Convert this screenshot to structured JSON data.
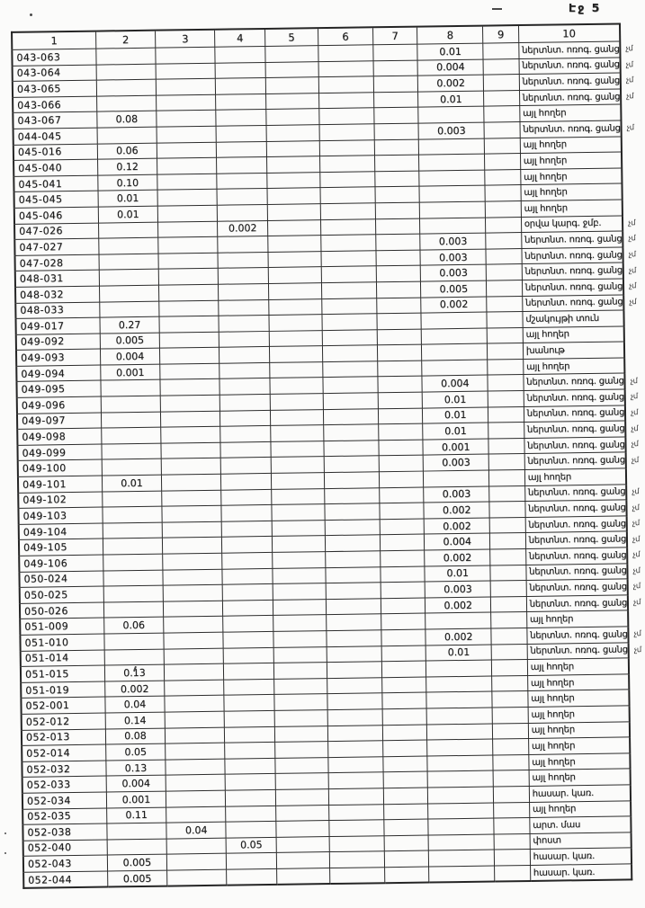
{
  "page": {
    "page_label": "Էջ 5"
  },
  "table": {
    "column_headers": [
      "1",
      "2",
      "3",
      "4",
      "5",
      "6",
      "7",
      "8",
      "9",
      "10"
    ],
    "rows": [
      {
        "code": "043-063",
        "values": {
          "8": "0.01"
        },
        "label": "ներտնտ. ոռոգ. ցանց",
        "margin": "չմ"
      },
      {
        "code": "043-064",
        "values": {
          "8": "0.004"
        },
        "label": "ներտնտ. ոռոգ. ցանց",
        "margin": "չմ"
      },
      {
        "code": "043-065",
        "values": {
          "8": "0.002"
        },
        "label": "ներտնտ. ոռոգ. ցանց",
        "margin": "չմ"
      },
      {
        "code": "043-066",
        "values": {
          "8": "0.01"
        },
        "label": "ներտնտ. ոռոգ. ցանց",
        "margin": "չմ"
      },
      {
        "code": "043-067",
        "values": {
          "2": "0.08"
        },
        "label": "այլ հողեր",
        "margin": ""
      },
      {
        "code": "044-045",
        "values": {
          "8": "0.003"
        },
        "label": "ներտնտ. ոռոգ. ցանց",
        "margin": "չմ"
      },
      {
        "code": "045-016",
        "values": {
          "2": "0.06"
        },
        "label": "այլ հողեր",
        "margin": ""
      },
      {
        "code": "045-040",
        "values": {
          "2": "0.12"
        },
        "label": "այլ հողեր",
        "margin": ""
      },
      {
        "code": "045-041",
        "values": {
          "2": "0.10"
        },
        "label": "այլ հողեր",
        "margin": ""
      },
      {
        "code": "045-045",
        "values": {
          "2": "0.01"
        },
        "label": "այլ հողեր",
        "margin": ""
      },
      {
        "code": "045-046",
        "values": {
          "2": "0.01"
        },
        "label": "այլ հողեր",
        "margin": ""
      },
      {
        "code": "047-026",
        "values": {
          "4": "0.002"
        },
        "label": "օրվա կարգ. ջմբ.",
        "margin": "չմ"
      },
      {
        "code": "047-027",
        "values": {
          "8": "0.003"
        },
        "label": "ներտնտ. ոռոգ. ցանց",
        "margin": "չմ"
      },
      {
        "code": "047-028",
        "values": {
          "8": "0.003"
        },
        "label": "ներտնտ. ոռոգ. ցանց",
        "margin": "չմ"
      },
      {
        "code": "048-031",
        "values": {
          "8": "0.003"
        },
        "label": "ներտնտ. ոռոգ. ցանց",
        "margin": "չմ"
      },
      {
        "code": "048-032",
        "values": {
          "8": "0.005"
        },
        "label": "ներտնտ. ոռոգ. ցանց",
        "margin": "չմ"
      },
      {
        "code": "048-033",
        "values": {
          "8": "0.002"
        },
        "label": "ներտնտ. ոռոգ. ցանց",
        "margin": "չմ"
      },
      {
        "code": "049-017",
        "values": {
          "2": "0.27"
        },
        "label": "մշակույթի տուն",
        "margin": ""
      },
      {
        "code": "049-092",
        "values": {
          "2": "0.005"
        },
        "label": "այլ հողեր",
        "margin": ""
      },
      {
        "code": "049-093",
        "values": {
          "2": "0.004"
        },
        "label": "խանութ",
        "margin": ""
      },
      {
        "code": "049-094",
        "values": {
          "2": "0.001"
        },
        "label": "այլ հողեր",
        "margin": ""
      },
      {
        "code": "049-095",
        "values": {
          "8": "0.004"
        },
        "label": "ներտնտ. ոռոգ. ցանց",
        "margin": "չմ"
      },
      {
        "code": "049-096",
        "values": {
          "8": "0.01"
        },
        "label": "ներտնտ. ոռոգ. ցանց",
        "margin": "չմ"
      },
      {
        "code": "049-097",
        "values": {
          "8": "0.01"
        },
        "label": "ներտնտ. ոռոգ. ցանց",
        "margin": "չմ"
      },
      {
        "code": "049-098",
        "values": {
          "8": "0.01"
        },
        "label": "ներտնտ. ոռոգ. ցանց",
        "margin": "չմ"
      },
      {
        "code": "049-099",
        "values": {
          "8": "0.001"
        },
        "label": "ներտնտ. ոռոգ. ցանց",
        "margin": "չմ"
      },
      {
        "code": "049-100",
        "values": {
          "8": "0.003"
        },
        "label": "ներտնտ. ոռոգ. ցանց",
        "margin": "չմ"
      },
      {
        "code": "049-101",
        "values": {
          "2": "0.01"
        },
        "label": "այլ հողեր",
        "margin": ""
      },
      {
        "code": "049-102",
        "values": {
          "8": "0.003"
        },
        "label": "ներտնտ. ոռոգ. ցանց",
        "margin": "չմ"
      },
      {
        "code": "049-103",
        "values": {
          "8": "0.002"
        },
        "label": "ներտնտ. ոռոգ. ցանց",
        "margin": "չմ"
      },
      {
        "code": "049-104",
        "values": {
          "8": "0.002"
        },
        "label": "ներտնտ. ոռոգ. ցանց",
        "margin": "չմ"
      },
      {
        "code": "049-105",
        "values": {
          "8": "0.004"
        },
        "label": "ներտնտ. ոռոգ. ցանց",
        "margin": "չմ"
      },
      {
        "code": "049-106",
        "values": {
          "8": "0.002"
        },
        "label": "ներտնտ. ոռոգ. ցանց",
        "margin": "չմ"
      },
      {
        "code": "050-024",
        "values": {
          "8": "0.01"
        },
        "label": "ներտնտ. ոռոգ. ցանց",
        "margin": "չմ"
      },
      {
        "code": "050-025",
        "values": {
          "8": "0.003"
        },
        "label": "ներտնտ. ոռոգ. ցանց",
        "margin": "չմ"
      },
      {
        "code": "050-026",
        "values": {
          "8": "0.002"
        },
        "label": "ներտնտ. ոռոգ. ցանց",
        "margin": "չմ"
      },
      {
        "code": "051-009",
        "values": {
          "2": "0.06"
        },
        "label": "այլ հողեր",
        "margin": ""
      },
      {
        "code": "051-010",
        "values": {
          "8": "0.002"
        },
        "label": "ներտնտ. ոռոգ. ցանց",
        "margin": "չմ"
      },
      {
        "code": "051-014",
        "values": {
          "8": "0.01"
        },
        "label": "ներտնտ. ոռոգ. ցանց",
        "margin": "չմ"
      },
      {
        "code": "051-015",
        "values": {
          "2": "0.13"
        },
        "label": "այլ հողեր",
        "margin": ""
      },
      {
        "code": "051-019",
        "values": {
          "2": "0.002"
        },
        "label": "այլ հողեր",
        "margin": ""
      },
      {
        "code": "052-001",
        "values": {
          "2": "0.04"
        },
        "label": "այլ հողեր",
        "margin": ""
      },
      {
        "code": "052-012",
        "values": {
          "2": "0.14"
        },
        "label": "այլ հողեր",
        "margin": ""
      },
      {
        "code": "052-013",
        "values": {
          "2": "0.08"
        },
        "label": "այլ հողեր",
        "margin": ""
      },
      {
        "code": "052-014",
        "values": {
          "2": "0.05"
        },
        "label": "այլ հողեր",
        "margin": ""
      },
      {
        "code": "052-032",
        "values": {
          "2": "0.13"
        },
        "label": "այլ հողեր",
        "margin": ""
      },
      {
        "code": "052-033",
        "values": {
          "2": "0.004"
        },
        "label": "այլ հողեր",
        "margin": ""
      },
      {
        "code": "052-034",
        "values": {
          "2": "0.001"
        },
        "label": "հասար. կառ.",
        "margin": ""
      },
      {
        "code": "052-035",
        "values": {
          "2": "0.11"
        },
        "label": "այլ հողեր",
        "margin": ""
      },
      {
        "code": "052-038",
        "values": {
          "3": "0.04"
        },
        "label": "արտ. մաս",
        "margin": ""
      },
      {
        "code": "052-040",
        "values": {
          "4": "0.05"
        },
        "label": "փոստ",
        "margin": ""
      },
      {
        "code": "052-043",
        "values": {
          "2": "0.005"
        },
        "label": "հասար. կառ.",
        "margin": ""
      },
      {
        "code": "052-044",
        "values": {
          "2": "0.005"
        },
        "label": "հասար. կառ.",
        "margin": ""
      }
    ]
  }
}
